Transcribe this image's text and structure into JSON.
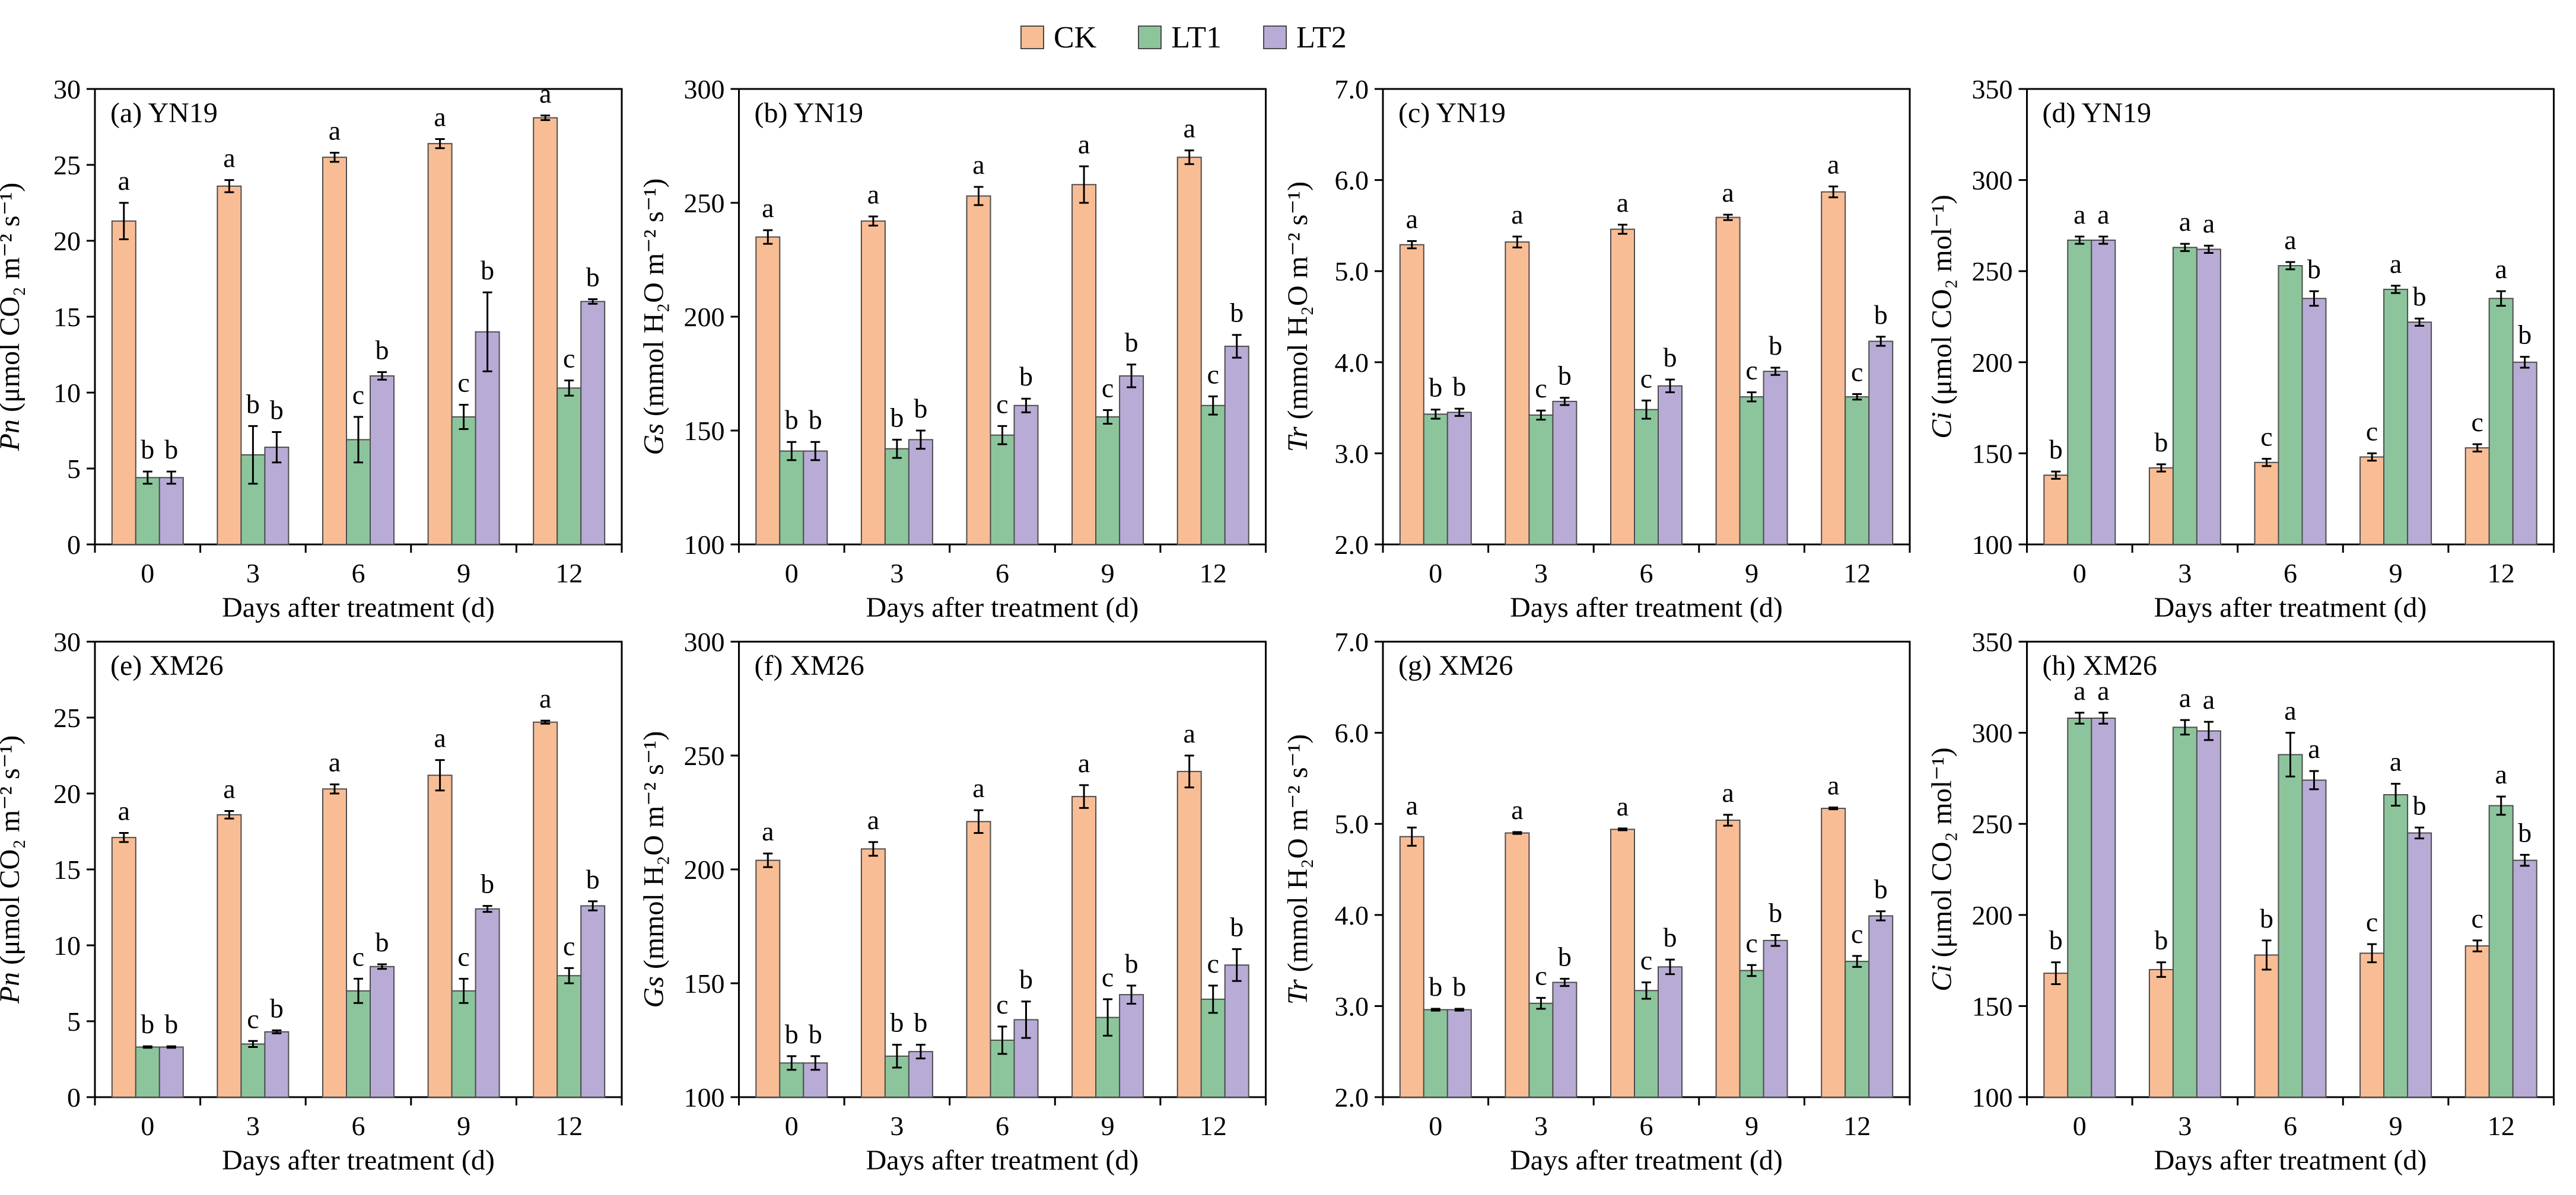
{
  "legend": [
    {
      "name": "CK",
      "color": "#f9bd95"
    },
    {
      "name": "LT1",
      "color": "#8cc59c"
    },
    {
      "name": "LT2",
      "color": "#b8acd6"
    }
  ],
  "colors": {
    "CK": "#f9bd95",
    "LT1": "#8cc59c",
    "LT2": "#b8acd6",
    "edge": "#4d4d4d"
  },
  "chart_data": [
    {
      "id": "a",
      "panel_label": "(a) YN19",
      "type": "bar",
      "ylabel_var": "Pn",
      "ylabel_rest": " (μmol CO₂ m⁻² s⁻¹)",
      "xlabel": "Days after treatment (d)",
      "categories": [
        "0",
        "3",
        "6",
        "9",
        "12"
      ],
      "ylim": [
        0,
        30
      ],
      "yticks": [
        "0",
        "5",
        "10",
        "15",
        "20",
        "25",
        "30"
      ],
      "series": [
        {
          "name": "CK",
          "values": [
            21.3,
            23.6,
            25.5,
            26.4,
            28.1
          ],
          "errors": [
            1.2,
            0.4,
            0.3,
            0.3,
            0.15
          ],
          "letters": [
            "a",
            "a",
            "a",
            "a",
            "a"
          ]
        },
        {
          "name": "LT1",
          "values": [
            4.4,
            5.9,
            6.9,
            8.4,
            10.3
          ],
          "errors": [
            0.4,
            1.9,
            1.5,
            0.8,
            0.5
          ],
          "letters": [
            "b",
            "b",
            "c",
            "c",
            "c"
          ]
        },
        {
          "name": "LT2",
          "values": [
            4.4,
            6.4,
            11.1,
            14.0,
            16.0
          ],
          "errors": [
            0.4,
            1.0,
            0.25,
            2.6,
            0.15
          ],
          "letters": [
            "b",
            "b",
            "b",
            "b",
            "b"
          ]
        }
      ]
    },
    {
      "id": "b",
      "panel_label": "(b) YN19",
      "type": "bar",
      "ylabel_var": "Gs",
      "ylabel_rest": " (mmol H₂O m⁻² s⁻¹)",
      "xlabel": "Days after treatment (d)",
      "categories": [
        "0",
        "3",
        "6",
        "9",
        "12"
      ],
      "ylim": [
        100,
        300
      ],
      "yticks": [
        "100",
        "150",
        "200",
        "250",
        "300"
      ],
      "series": [
        {
          "name": "CK",
          "values": [
            235,
            242,
            253,
            258,
            270
          ],
          "errors": [
            3,
            2,
            4,
            8,
            3
          ],
          "letters": [
            "a",
            "a",
            "a",
            "a",
            "a"
          ]
        },
        {
          "name": "LT1",
          "values": [
            141,
            142,
            148,
            156,
            161
          ],
          "errors": [
            4,
            4,
            4,
            3,
            4
          ],
          "letters": [
            "b",
            "b",
            "c",
            "c",
            "c"
          ]
        },
        {
          "name": "LT2",
          "values": [
            141,
            146,
            161,
            174,
            187
          ],
          "errors": [
            4,
            4,
            3,
            5,
            5
          ],
          "letters": [
            "b",
            "b",
            "b",
            "b",
            "b"
          ]
        }
      ]
    },
    {
      "id": "c",
      "panel_label": "(c) YN19",
      "type": "bar",
      "ylabel_var": "Tr",
      "ylabel_rest": " (mmol H₂O m⁻² s⁻¹)",
      "xlabel": "Days after treatment (d)",
      "categories": [
        "0",
        "3",
        "6",
        "9",
        "12"
      ],
      "ylim": [
        2,
        7
      ],
      "yticks": [
        "2.0",
        "3.0",
        "4.0",
        "5.0",
        "6.0",
        "7.0"
      ],
      "series": [
        {
          "name": "CK",
          "values": [
            5.29,
            5.32,
            5.46,
            5.59,
            5.87
          ],
          "errors": [
            0.04,
            0.06,
            0.05,
            0.03,
            0.06
          ],
          "letters": [
            "a",
            "a",
            "a",
            "a",
            "a"
          ]
        },
        {
          "name": "LT1",
          "values": [
            3.43,
            3.42,
            3.48,
            3.62,
            3.62
          ],
          "errors": [
            0.05,
            0.05,
            0.1,
            0.05,
            0.03
          ],
          "letters": [
            "b",
            "c",
            "c",
            "c",
            "c"
          ]
        },
        {
          "name": "LT2",
          "values": [
            3.45,
            3.57,
            3.74,
            3.9,
            4.23
          ],
          "errors": [
            0.04,
            0.04,
            0.07,
            0.04,
            0.05
          ],
          "letters": [
            "b",
            "b",
            "b",
            "b",
            "b"
          ]
        }
      ]
    },
    {
      "id": "d",
      "panel_label": "(d) YN19",
      "type": "bar",
      "ylabel_var": "Ci",
      "ylabel_rest": " (μmol CO₂ mol⁻¹)",
      "xlabel": "Days after treatment (d)",
      "categories": [
        "0",
        "3",
        "6",
        "9",
        "12"
      ],
      "ylim": [
        100,
        350
      ],
      "yticks": [
        "100",
        "150",
        "200",
        "250",
        "300",
        "350"
      ],
      "series": [
        {
          "name": "CK",
          "values": [
            138,
            142,
            145,
            148,
            153
          ],
          "errors": [
            2,
            2,
            2,
            2,
            2
          ],
          "letters": [
            "b",
            "b",
            "c",
            "c",
            "c"
          ]
        },
        {
          "name": "LT1",
          "values": [
            267,
            263,
            253,
            240,
            235
          ],
          "errors": [
            2,
            2,
            2,
            2,
            4
          ],
          "letters": [
            "a",
            "a",
            "a",
            "a",
            "a"
          ]
        },
        {
          "name": "LT2",
          "values": [
            267,
            262,
            235,
            222,
            200
          ],
          "errors": [
            2,
            2,
            4,
            2,
            3
          ],
          "letters": [
            "a",
            "a",
            "b",
            "b",
            "b"
          ]
        }
      ]
    },
    {
      "id": "e",
      "panel_label": "(e) XM26",
      "type": "bar",
      "ylabel_var": "Pn",
      "ylabel_rest": " (μmol CO₂ m⁻² s⁻¹)",
      "xlabel": "Days after treatment (d)",
      "categories": [
        "0",
        "3",
        "6",
        "9",
        "12"
      ],
      "ylim": [
        0,
        30
      ],
      "yticks": [
        "0",
        "5",
        "10",
        "15",
        "20",
        "25",
        "30"
      ],
      "series": [
        {
          "name": "CK",
          "values": [
            17.1,
            18.6,
            20.3,
            21.2,
            24.7
          ],
          "errors": [
            0.3,
            0.25,
            0.3,
            1.0,
            0.1
          ],
          "letters": [
            "a",
            "a",
            "a",
            "a",
            "a"
          ]
        },
        {
          "name": "LT1",
          "values": [
            3.3,
            3.5,
            7.0,
            7.0,
            8.0
          ],
          "errors": [
            0.05,
            0.2,
            0.8,
            0.8,
            0.5
          ],
          "letters": [
            "b",
            "c",
            "c",
            "c",
            "c"
          ]
        },
        {
          "name": "LT2",
          "values": [
            3.3,
            4.3,
            8.6,
            12.4,
            12.6
          ],
          "errors": [
            0.05,
            0.1,
            0.15,
            0.2,
            0.3
          ],
          "letters": [
            "b",
            "b",
            "b",
            "b",
            "b"
          ]
        }
      ]
    },
    {
      "id": "f",
      "panel_label": "(f) XM26",
      "type": "bar",
      "ylabel_var": "Gs",
      "ylabel_rest": " (mmol H₂O m⁻² s⁻¹)",
      "xlabel": "Days after treatment (d)",
      "categories": [
        "0",
        "3",
        "6",
        "9",
        "12"
      ],
      "ylim": [
        100,
        300
      ],
      "yticks": [
        "100",
        "150",
        "200",
        "250",
        "300"
      ],
      "series": [
        {
          "name": "CK",
          "values": [
            204,
            209,
            221,
            232,
            243
          ],
          "errors": [
            3,
            3,
            5,
            5,
            7
          ],
          "letters": [
            "a",
            "a",
            "a",
            "a",
            "a"
          ]
        },
        {
          "name": "LT1",
          "values": [
            115,
            118,
            125,
            135,
            143
          ],
          "errors": [
            3,
            5,
            6,
            8,
            6
          ],
          "letters": [
            "b",
            "b",
            "c",
            "c",
            "c"
          ]
        },
        {
          "name": "LT2",
          "values": [
            115,
            120,
            134,
            145,
            158
          ],
          "errors": [
            3,
            3,
            8,
            4,
            7
          ],
          "letters": [
            "b",
            "b",
            "b",
            "b",
            "b"
          ]
        }
      ]
    },
    {
      "id": "g",
      "panel_label": "(g) XM26",
      "type": "bar",
      "ylabel_var": "Tr",
      "ylabel_rest": " (mmol H₂O m⁻² s⁻¹)",
      "xlabel": "Days after treatment (d)",
      "categories": [
        "0",
        "3",
        "6",
        "9",
        "12"
      ],
      "ylim": [
        2,
        7
      ],
      "yticks": [
        "2.0",
        "3.0",
        "4.0",
        "5.0",
        "6.0",
        "7.0"
      ],
      "series": [
        {
          "name": "CK",
          "values": [
            4.86,
            4.9,
            4.94,
            5.04,
            5.17
          ],
          "errors": [
            0.1,
            0.01,
            0.01,
            0.06,
            0.01
          ],
          "letters": [
            "a",
            "a",
            "a",
            "a",
            "a"
          ]
        },
        {
          "name": "LT1",
          "values": [
            2.96,
            3.03,
            3.17,
            3.39,
            3.49
          ],
          "errors": [
            0.01,
            0.06,
            0.09,
            0.06,
            0.06
          ],
          "letters": [
            "b",
            "c",
            "c",
            "c",
            "c"
          ]
        },
        {
          "name": "LT2",
          "values": [
            2.96,
            3.26,
            3.43,
            3.72,
            3.99
          ],
          "errors": [
            0.01,
            0.04,
            0.08,
            0.06,
            0.05
          ],
          "letters": [
            "b",
            "b",
            "b",
            "b",
            "b"
          ]
        }
      ]
    },
    {
      "id": "h",
      "panel_label": "(h) XM26",
      "type": "bar",
      "ylabel_var": "Ci",
      "ylabel_rest": " (μmol CO₂ mol⁻¹)",
      "xlabel": "Days after treatment (d)",
      "categories": [
        "0",
        "3",
        "6",
        "9",
        "12"
      ],
      "ylim": [
        100,
        350
      ],
      "yticks": [
        "100",
        "150",
        "200",
        "250",
        "300",
        "350"
      ],
      "series": [
        {
          "name": "CK",
          "values": [
            168,
            170,
            178,
            179,
            183
          ],
          "errors": [
            6,
            4,
            8,
            5,
            3
          ],
          "letters": [
            "b",
            "b",
            "b",
            "c",
            "c"
          ]
        },
        {
          "name": "LT1",
          "values": [
            308,
            303,
            288,
            266,
            260
          ],
          "errors": [
            3,
            4,
            12,
            6,
            5
          ],
          "letters": [
            "a",
            "a",
            "a",
            "a",
            "a"
          ]
        },
        {
          "name": "LT2",
          "values": [
            308,
            301,
            274,
            245,
            230
          ],
          "errors": [
            3,
            5,
            5,
            3,
            3
          ],
          "letters": [
            "a",
            "a",
            "a",
            "b",
            "b"
          ]
        }
      ]
    }
  ]
}
